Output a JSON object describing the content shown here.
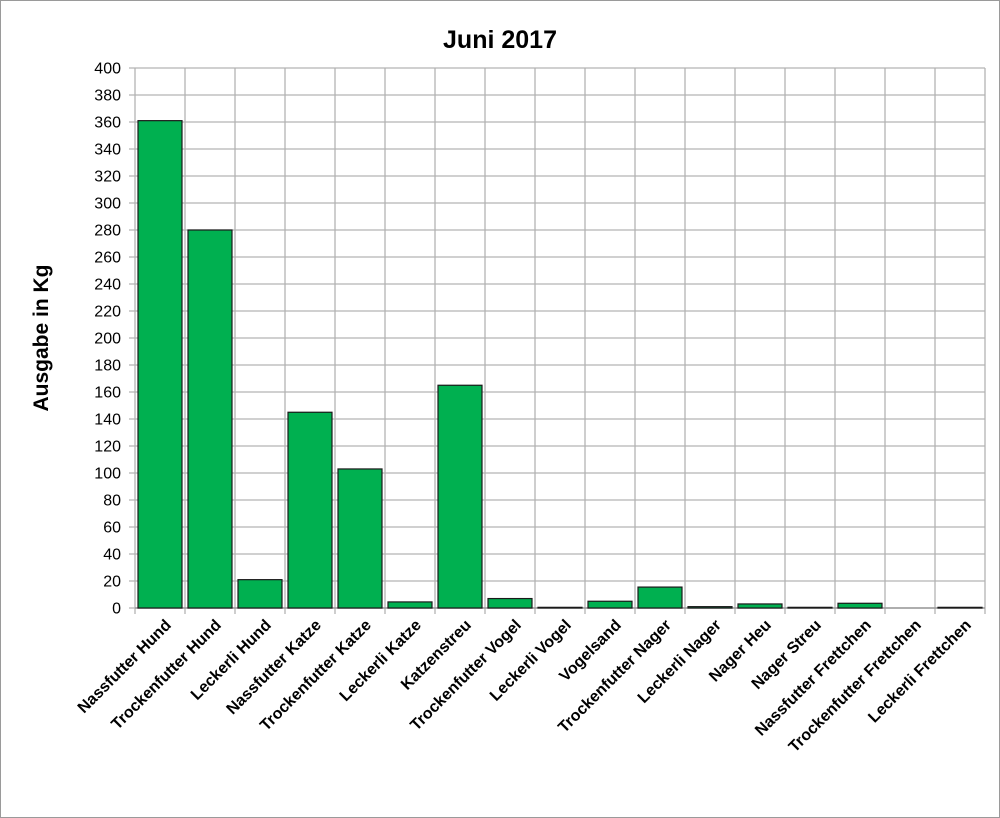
{
  "chart_data": {
    "type": "bar",
    "title": "Juni 2017",
    "xlabel": "",
    "ylabel": "Ausgabe in Kg",
    "ylim": [
      0,
      400
    ],
    "ytick_step": 20,
    "grid": true,
    "legend": null,
    "bar_color": "#00B050",
    "categories": [
      "Nassfutter Hund",
      "Trockenfutter Hund",
      "Leckerli Hund",
      "Nassfutter Katze",
      "Trockenfutter Katze",
      "Leckerli Katze",
      "Katzenstreu",
      "Trockenfutter Vogel",
      "Leckerli Vogel",
      "Vogelsand",
      "Trockenfutter Nager",
      "Leckerli Nager",
      "Nager Heu",
      "Nager Streu",
      "Nassfutter Frettchen",
      "Trockenfutter Frettchen",
      "Leckerli Frettchen"
    ],
    "values": [
      361,
      280,
      21,
      145,
      103,
      4.5,
      165,
      7,
      0.5,
      5,
      15.5,
      1,
      3,
      0.5,
      3.5,
      0,
      0.5
    ]
  }
}
